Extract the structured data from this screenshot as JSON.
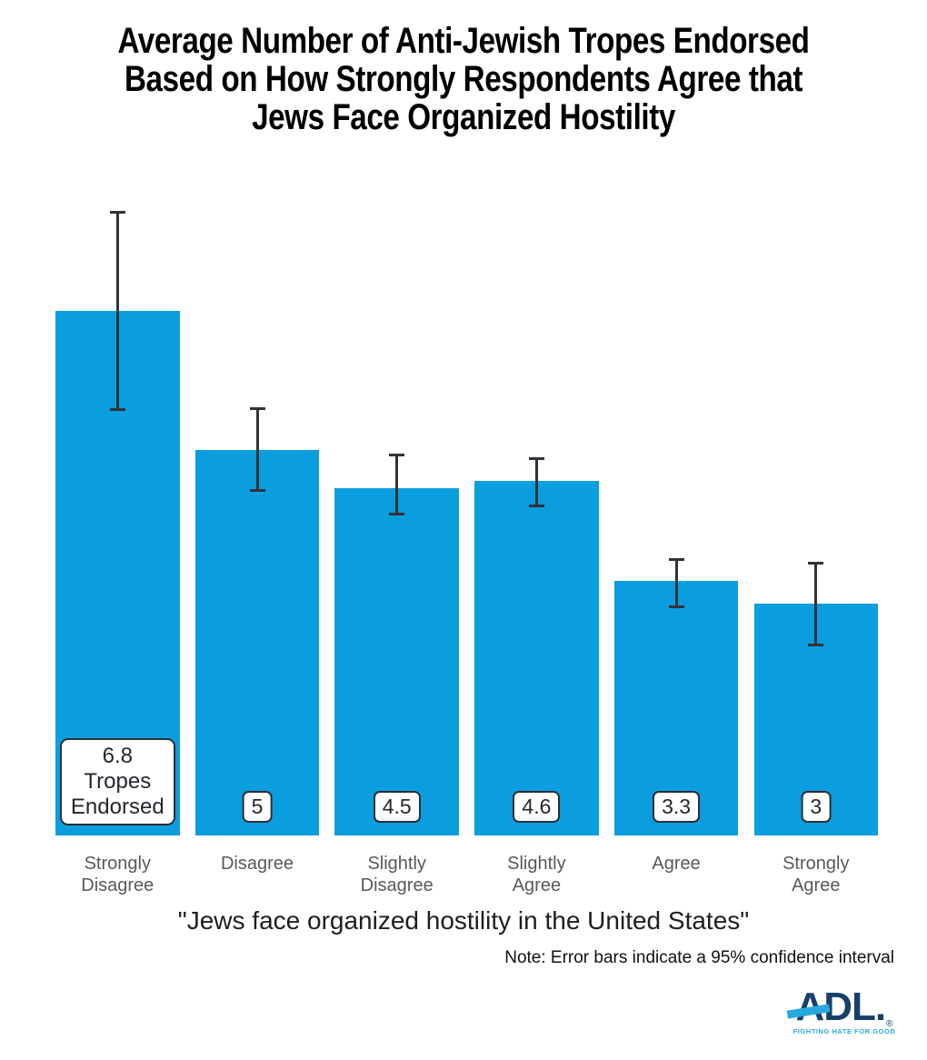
{
  "chart_data": {
    "type": "bar",
    "title": "Average Number of Anti-Jewish Tropes Endorsed Based on How Strongly Respondents Agree that Jews Face Organized Hostility",
    "title_lines": [
      "Average Number of Anti-Jewish Tropes Endorsed",
      "Based on How Strongly Respondents Agree that",
      "Jews Face Organized Hostility"
    ],
    "categories": [
      "Strongly Disagree",
      "Disagree",
      "Slightly Disagree",
      "Slightly Agree",
      "Agree",
      "Strongly Agree"
    ],
    "values": [
      6.8,
      5,
      4.5,
      4.6,
      3.3,
      3
    ],
    "bar_label_lines": [
      [
        "6.8",
        "Tropes",
        "Endorsed"
      ],
      [
        "5"
      ],
      [
        "4.5"
      ],
      [
        "4.6"
      ],
      [
        "3.3"
      ],
      [
        "3"
      ]
    ],
    "error_bars": {
      "meaning": "95% confidence interval",
      "low": [
        5.5,
        4.45,
        4.15,
        4.25,
        2.95,
        2.45
      ],
      "high": [
        8.1,
        5.55,
        4.95,
        4.9,
        3.6,
        3.55
      ]
    },
    "xlabel": "\"Jews face organized hostility in the United States\"",
    "ylabel": "",
    "ylim": [
      0,
      8.5
    ],
    "grid": false,
    "legend": false,
    "bar_color": "#0A9EDE",
    "error_bar_color": "#333239",
    "category_label_color": "#595959",
    "note": "Note: Error bars indicate a 95% confidence interval"
  },
  "footer": {
    "logo": {
      "text": "ADL",
      "period": ".",
      "registered": "®",
      "tagline": "FIGHTING HATE FOR GOOD",
      "navy": "#173F6A",
      "cyan": "#29A8E0"
    }
  }
}
